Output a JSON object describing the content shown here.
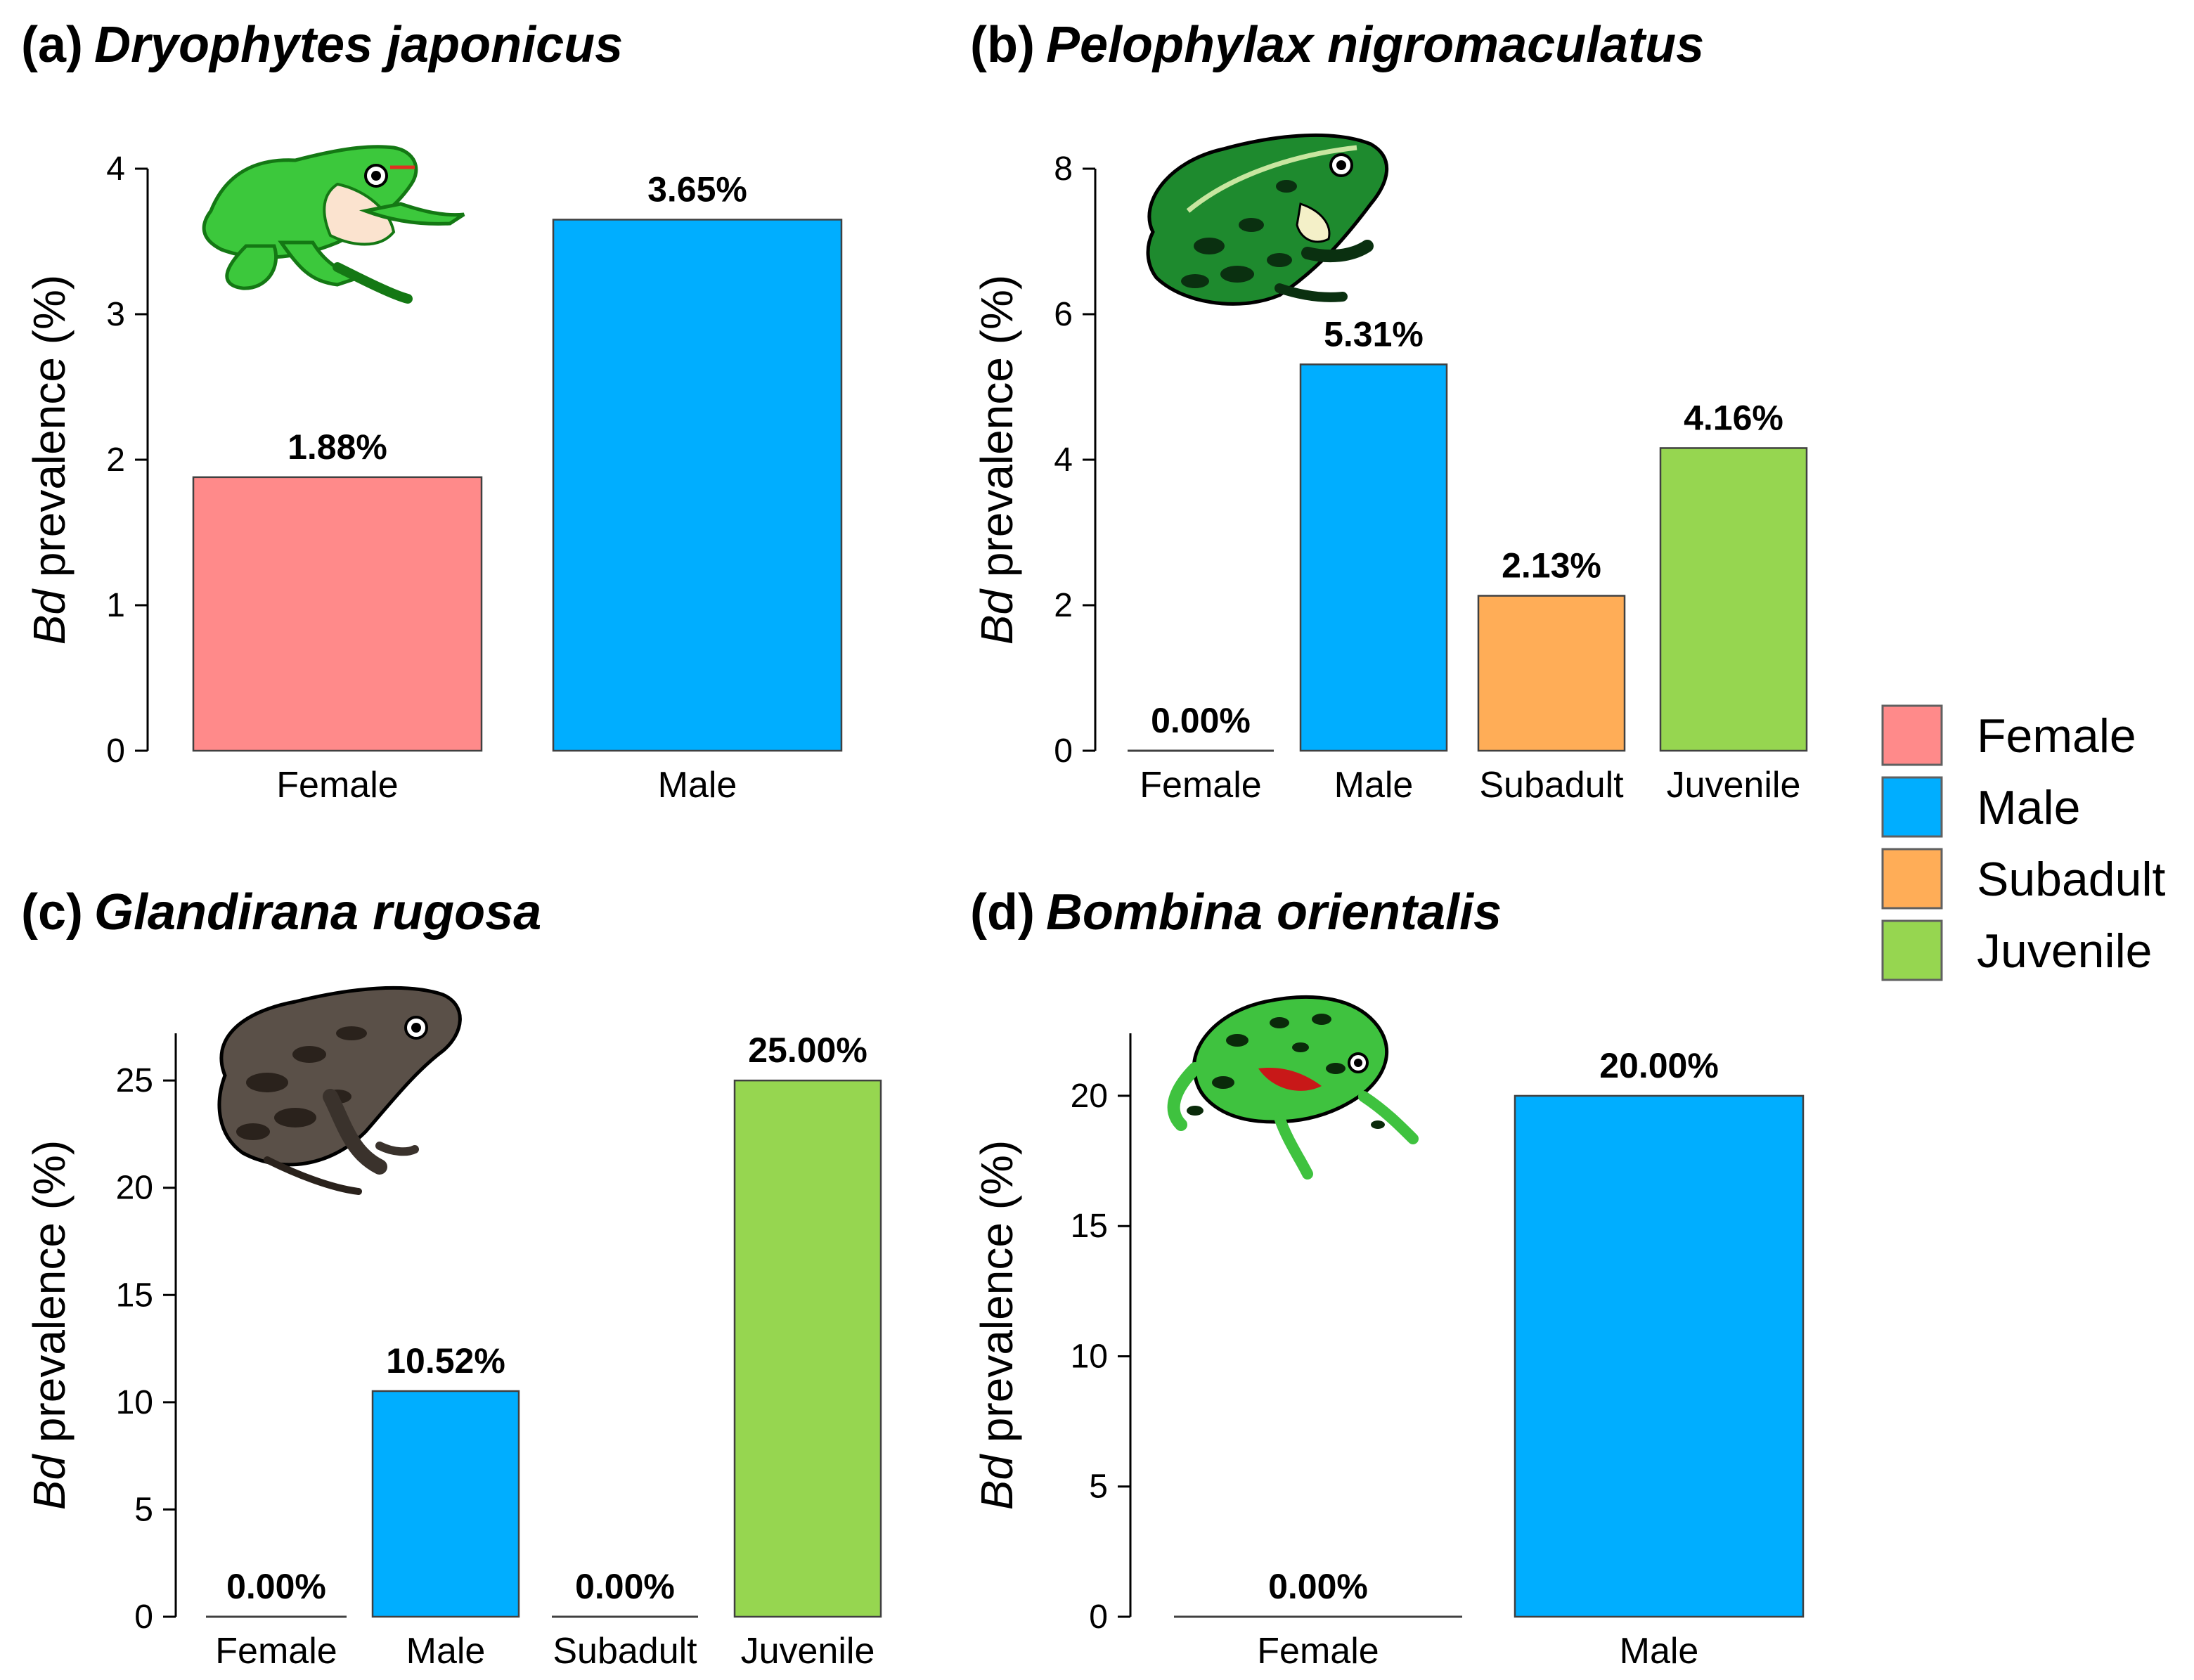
{
  "chart_data": [
    {
      "panel": "(a)",
      "species": "Dryophytes japonicus",
      "type": "bar",
      "categories": [
        "Female",
        "Male"
      ],
      "values": [
        1.88,
        3.65
      ],
      "value_labels": [
        "1.88%",
        "3.65%"
      ],
      "ylim": [
        0,
        4
      ],
      "yticks": [
        0,
        1,
        2,
        3,
        4
      ],
      "ylabel_italic": "Bd",
      "ylabel_rest": " prevalence (%)",
      "frog": "green tree frog"
    },
    {
      "panel": "(b)",
      "species": "Pelophylax nigromaculatus",
      "type": "bar",
      "categories": [
        "Female",
        "Male",
        "Subadult",
        "Juvenile"
      ],
      "values": [
        0.0,
        5.31,
        2.13,
        4.16
      ],
      "value_labels": [
        "0.00%",
        "5.31%",
        "2.13%",
        "4.16%"
      ],
      "ylim": [
        0,
        8
      ],
      "yticks": [
        0,
        2,
        4,
        6,
        8
      ],
      "ylabel_italic": "Bd",
      "ylabel_rest": " prevalence (%)",
      "frog": "dark-spotted frog"
    },
    {
      "panel": "(c)",
      "species": "Glandirana rugosa",
      "type": "bar",
      "categories": [
        "Female",
        "Male",
        "Subadult",
        "Juvenile"
      ],
      "values": [
        0.0,
        10.52,
        0.0,
        25.0
      ],
      "value_labels": [
        "0.00%",
        "10.52%",
        "0.00%",
        "25.00%"
      ],
      "ylim": [
        0,
        27.2
      ],
      "yticks": [
        0,
        5,
        10,
        15,
        20,
        25
      ],
      "ylabel_italic": "Bd",
      "ylabel_rest": " prevalence (%)",
      "frog": "wrinkled frog"
    },
    {
      "panel": "(d)",
      "species": "Bombina orientalis",
      "type": "bar",
      "categories": [
        "Female",
        "Male"
      ],
      "values": [
        0.0,
        20.0
      ],
      "value_labels": [
        "0.00%",
        "20.00%"
      ],
      "ylim": [
        0,
        22.4
      ],
      "yticks": [
        0,
        5,
        10,
        15,
        20
      ],
      "ylabel_italic": "Bd",
      "ylabel_rest": " prevalence (%)",
      "frog": "fire-bellied toad"
    }
  ],
  "legend": [
    {
      "label": "Female",
      "color": "#FF8A8A"
    },
    {
      "label": "Male",
      "color": "#00AEFF"
    },
    {
      "label": "Subadult",
      "color": "#FFAD57"
    },
    {
      "label": "Juvenile",
      "color": "#96D650"
    }
  ]
}
